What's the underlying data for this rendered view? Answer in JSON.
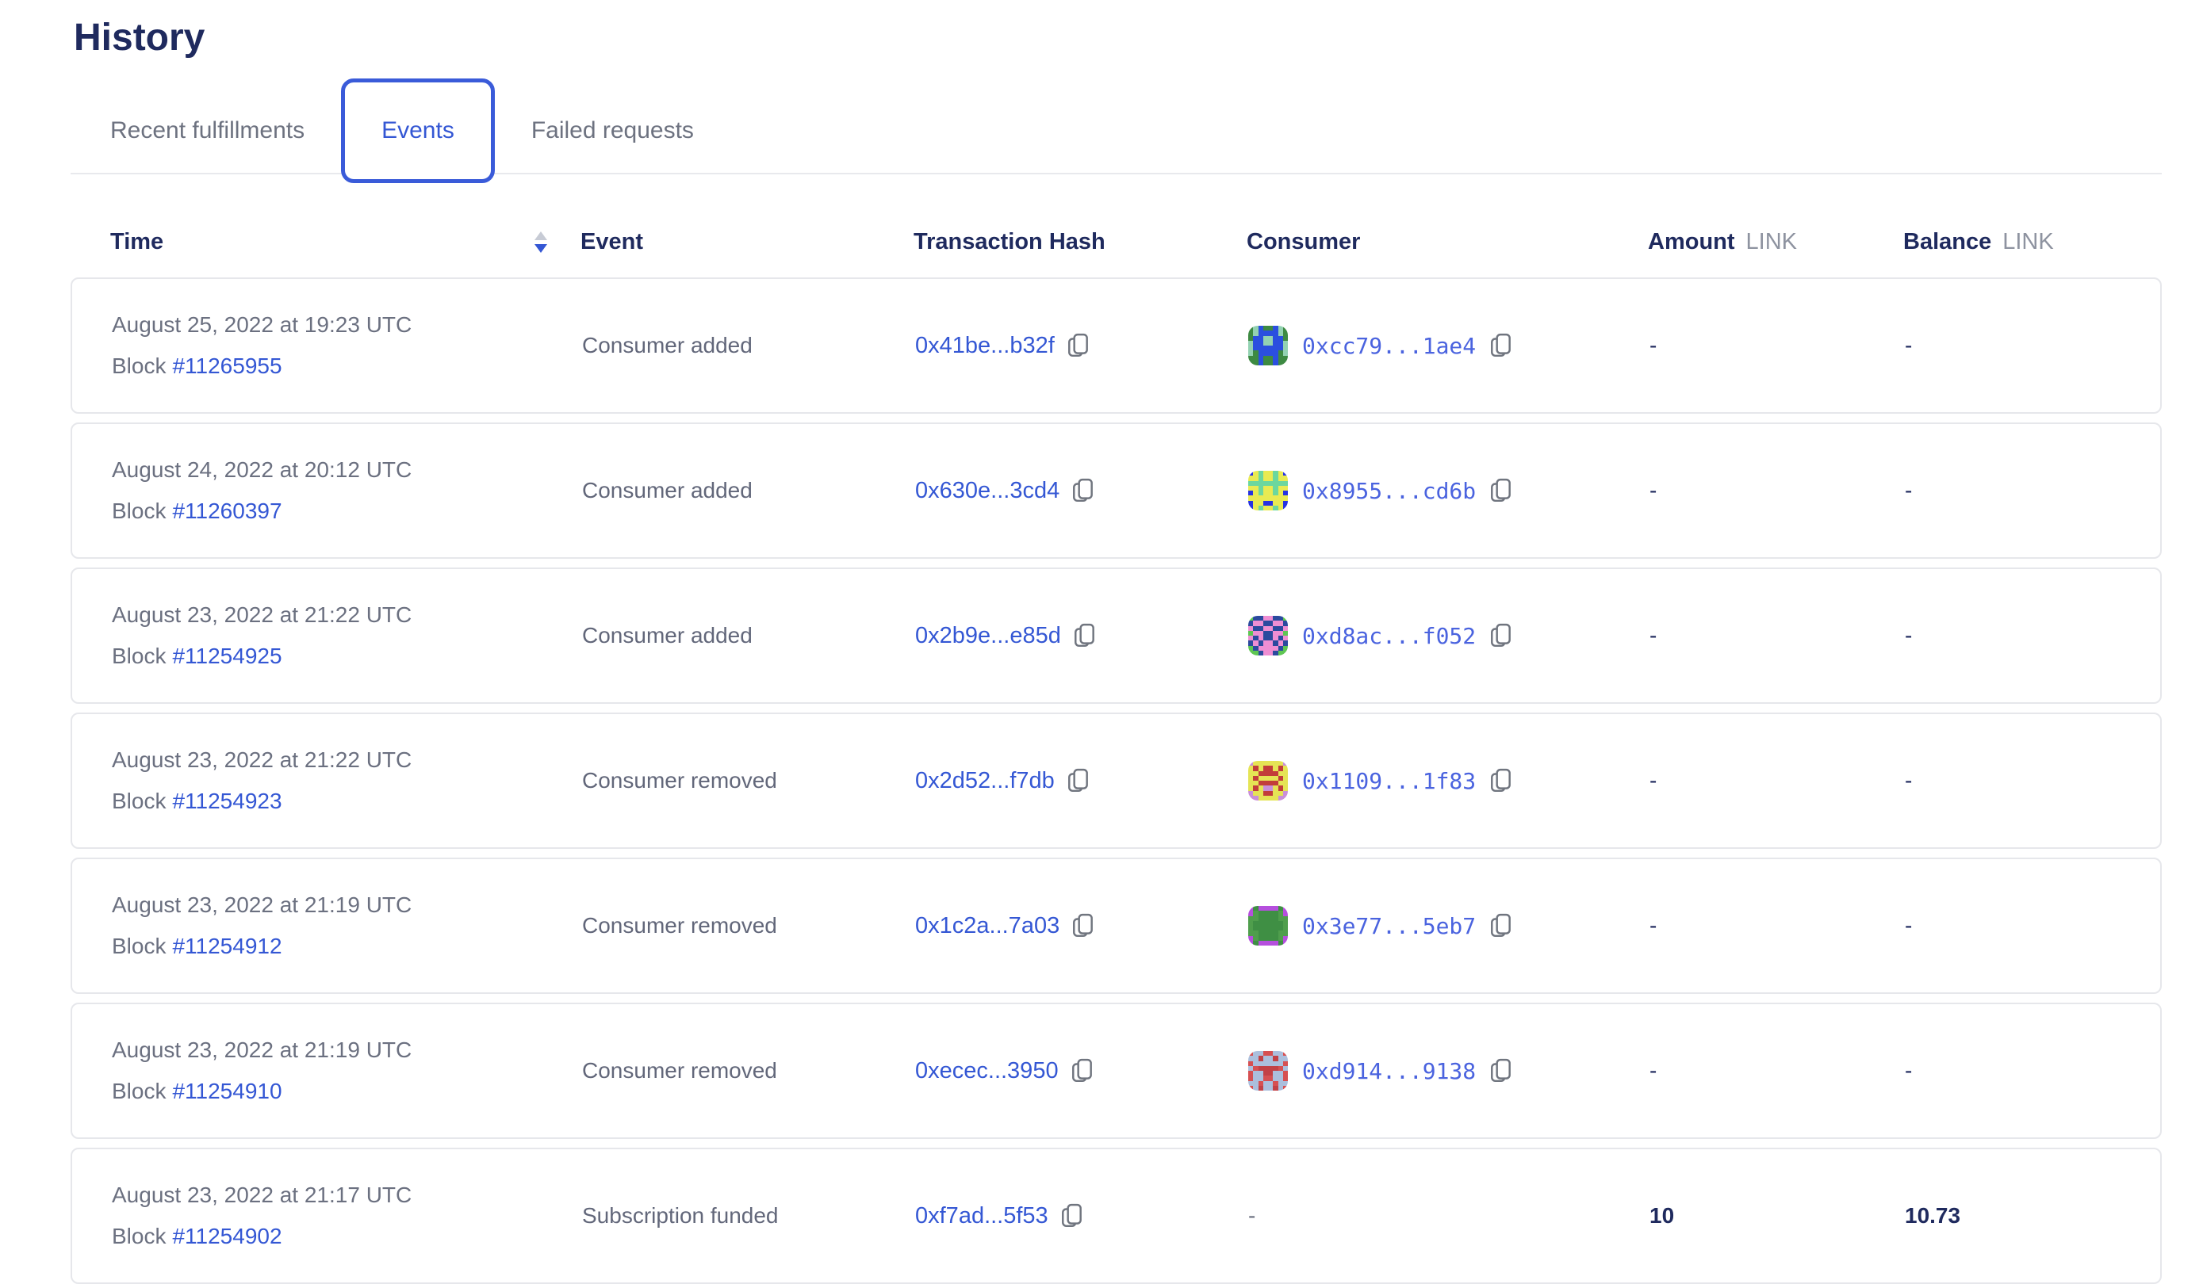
{
  "page": {
    "title": "History"
  },
  "tabs": [
    {
      "label": "Recent fulfillments",
      "active": false
    },
    {
      "label": "Events",
      "active": true
    },
    {
      "label": "Failed requests",
      "active": false
    }
  ],
  "colors": {
    "accent_blue": "#3457d4",
    "active_tab_border": "#3a5bd9",
    "heading_navy": "#1f2a5e",
    "muted_gray": "#6b7080",
    "unit_gray": "#8e93a0",
    "card_border": "#e6e7eb",
    "sort_inactive": "#c7cbd5"
  },
  "table": {
    "columns": {
      "time": "Time",
      "event": "Event",
      "tx": "Transaction Hash",
      "consumer": "Consumer",
      "amount": "Amount",
      "balance": "Balance",
      "unit": "LINK"
    },
    "sort": {
      "column": "time",
      "direction": "descending"
    },
    "rows": [
      {
        "date": "August 25, 2022 at 19:23 UTC",
        "block_label": "Block",
        "block": "#11265955",
        "event": "Consumer added",
        "tx": "0x41be...b32f",
        "consumer": "0xcc79...1ae4",
        "amount": "-",
        "balance": "-",
        "avatar": {
          "colors": [
            "#3d8a42",
            "#2b4fdf",
            "#93d2b2"
          ],
          "pattern": [
            "02100120",
            "02111120",
            "01122110",
            "21122112",
            "21111112",
            "20111102",
            "00100100",
            "00100100"
          ]
        }
      },
      {
        "date": "August 24, 2022 at 20:12 UTC",
        "block_label": "Block",
        "block": "#11260397",
        "event": "Consumer added",
        "tx": "0x630e...3cd4",
        "consumer": "0x8955...cd6b",
        "amount": "-",
        "balance": "-",
        "avatar": {
          "colors": [
            "#2632e2",
            "#e9ea52",
            "#6cd79e"
          ],
          "pattern": [
            "01211210",
            "11211211",
            "22222222",
            "11211211",
            "01211210",
            "11111111",
            "01100110",
            "01211210"
          ]
        }
      },
      {
        "date": "August 23, 2022 at 21:22 UTC",
        "block_label": "Block",
        "block": "#11254925",
        "event": "Consumer added",
        "tx": "0x2b9e...e85d",
        "consumer": "0xd8ac...f052",
        "amount": "-",
        "balance": "-",
        "avatar": {
          "colors": [
            "#5ec653",
            "#ef8ed3",
            "#2b4a9e"
          ],
          "pattern": [
            "02211220",
            "21122112",
            "12211221",
            "01122110",
            "12122121",
            "21211212",
            "02111120",
            "00211200"
          ]
        }
      },
      {
        "date": "August 23, 2022 at 21:22 UTC",
        "block_label": "Block",
        "block": "#11254923",
        "event": "Consumer removed",
        "tx": "0x2d52...f7db",
        "consumer": "0x1109...1f83",
        "amount": "-",
        "balance": "-",
        "avatar": {
          "colors": [
            "#c98fd9",
            "#e5e455",
            "#c23d3a"
          ],
          "pattern": [
            "01111110",
            "12122121",
            "11222211",
            "12111121",
            "11222211",
            "12100121",
            "01122110",
            "00111100"
          ]
        }
      },
      {
        "date": "August 23, 2022 at 21:19 UTC",
        "block_label": "Block",
        "block": "#11254912",
        "event": "Consumer removed",
        "tx": "0x1c2a...7a03",
        "consumer": "0x3e77...5eb7",
        "amount": "-",
        "balance": "-",
        "avatar": {
          "colors": [
            "#4f9e4c",
            "#b54fdd",
            "#3f8f44"
          ],
          "pattern": [
            "12111121",
            "10222201",
            "00222200",
            "02222220",
            "02222220",
            "00222200",
            "10222201",
            "12111121"
          ]
        }
      },
      {
        "date": "August 23, 2022 at 21:19 UTC",
        "block_label": "Block",
        "block": "#11254910",
        "event": "Consumer removed",
        "tx": "0xecec...3950",
        "consumer": "0xd914...9138",
        "amount": "-",
        "balance": "-",
        "avatar": {
          "colors": [
            "#d65052",
            "#abbfdd",
            "#c24146"
          ],
          "pattern": [
            "01100110",
            "11211211",
            "01111110",
            "10222201",
            "01122110",
            "01100110",
            "11011011",
            "01211210"
          ]
        }
      },
      {
        "date": "August 23, 2022 at 21:17 UTC",
        "block_label": "Block",
        "block": "#11254902",
        "event": "Subscription funded",
        "tx": "0xf7ad...5f53",
        "consumer": "-",
        "amount": "10",
        "balance": "10.73",
        "avatar": null
      }
    ]
  }
}
